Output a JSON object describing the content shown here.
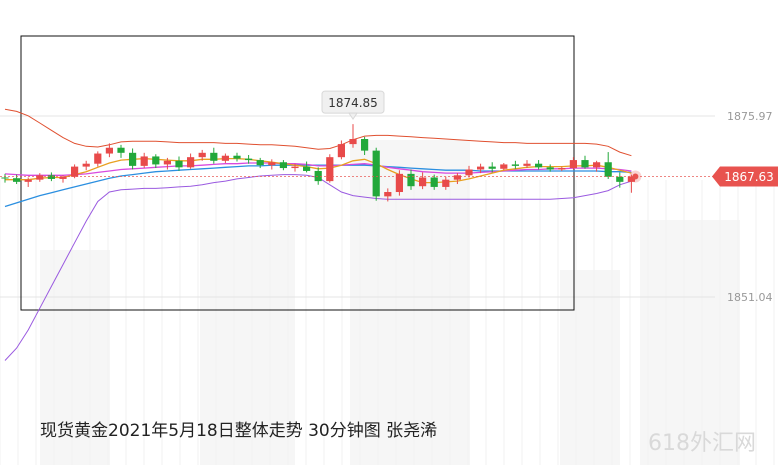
{
  "caption": "现货黄金2021年5月18日整体走势 30分钟图 张尧浠",
  "watermark": "618外汇网",
  "chart_data": {
    "type": "candlestick",
    "title": "现货黄金2021年5月18日整体走势 30分钟图",
    "ylim": [
      1840,
      1880
    ],
    "y_ticks": [
      {
        "value": 1875.97,
        "label": "1875.97"
      },
      {
        "value": 1851.04,
        "label": "1851.04"
      }
    ],
    "high_marker": {
      "value": 1874.85,
      "label": "1874.85"
    },
    "last_price": {
      "value": 1867.63,
      "label": "1867.63"
    },
    "colors": {
      "up": "#e84a4a",
      "down": "#22a83a",
      "ma_fast": "#e8a020",
      "ma_mid": "#d84adf",
      "ma_slow": "#2b8fe0",
      "bb_upper": "#e05030",
      "bb_lower": "#9a5ae0",
      "price_tag": "#e8534f"
    },
    "candles": [
      [
        1867.5,
        1868.0,
        1866.8,
        1867.4
      ],
      [
        1867.4,
        1867.9,
        1866.6,
        1866.9
      ],
      [
        1866.9,
        1867.5,
        1866.2,
        1867.2
      ],
      [
        1867.2,
        1868.1,
        1866.9,
        1867.8
      ],
      [
        1867.8,
        1868.2,
        1867.0,
        1867.3
      ],
      [
        1867.3,
        1867.8,
        1866.8,
        1867.6
      ],
      [
        1867.6,
        1869.3,
        1867.4,
        1869.0
      ],
      [
        1869.0,
        1869.8,
        1868.5,
        1869.4
      ],
      [
        1869.4,
        1871.1,
        1869.0,
        1870.8
      ],
      [
        1870.8,
        1872.2,
        1870.3,
        1871.6
      ],
      [
        1871.6,
        1872.0,
        1870.2,
        1870.9
      ],
      [
        1870.9,
        1871.5,
        1868.6,
        1869.1
      ],
      [
        1869.1,
        1870.9,
        1868.8,
        1870.4
      ],
      [
        1870.4,
        1870.7,
        1868.8,
        1869.3
      ],
      [
        1869.3,
        1870.2,
        1868.6,
        1869.8
      ],
      [
        1869.8,
        1870.4,
        1868.4,
        1868.9
      ],
      [
        1868.9,
        1870.8,
        1868.7,
        1870.3
      ],
      [
        1870.3,
        1871.3,
        1869.8,
        1870.9
      ],
      [
        1870.9,
        1871.6,
        1869.4,
        1869.8
      ],
      [
        1869.8,
        1870.8,
        1869.5,
        1870.5
      ],
      [
        1870.5,
        1870.9,
        1869.7,
        1870.1
      ],
      [
        1870.1,
        1870.6,
        1869.4,
        1869.9
      ],
      [
        1869.9,
        1870.2,
        1868.8,
        1869.2
      ],
      [
        1869.2,
        1870.0,
        1868.6,
        1869.6
      ],
      [
        1869.6,
        1869.9,
        1868.5,
        1868.8
      ],
      [
        1868.8,
        1869.4,
        1868.3,
        1869.0
      ],
      [
        1869.0,
        1869.7,
        1868.2,
        1868.4
      ],
      [
        1868.4,
        1868.9,
        1866.5,
        1867.0
      ],
      [
        1867.0,
        1870.7,
        1866.8,
        1870.3
      ],
      [
        1870.3,
        1872.6,
        1870.0,
        1872.1
      ],
      [
        1872.1,
        1874.85,
        1871.6,
        1872.8
      ],
      [
        1872.8,
        1873.1,
        1870.6,
        1871.2
      ],
      [
        1871.2,
        1871.6,
        1864.3,
        1864.9
      ],
      [
        1864.9,
        1866.0,
        1864.2,
        1865.5
      ],
      [
        1865.5,
        1868.5,
        1865.0,
        1868.0
      ],
      [
        1868.0,
        1868.6,
        1865.8,
        1866.3
      ],
      [
        1866.3,
        1868.2,
        1865.9,
        1867.5
      ],
      [
        1867.5,
        1867.9,
        1865.8,
        1866.2
      ],
      [
        1866.2,
        1867.6,
        1865.8,
        1867.2
      ],
      [
        1867.2,
        1868.1,
        1866.6,
        1867.8
      ],
      [
        1867.8,
        1869.1,
        1867.5,
        1868.6
      ],
      [
        1868.6,
        1869.4,
        1868.1,
        1869.0
      ],
      [
        1869.0,
        1869.6,
        1868.2,
        1868.7
      ],
      [
        1868.7,
        1869.5,
        1868.5,
        1869.3
      ],
      [
        1869.3,
        1869.8,
        1868.7,
        1869.1
      ],
      [
        1869.1,
        1869.9,
        1868.8,
        1869.4
      ],
      [
        1869.4,
        1869.9,
        1868.6,
        1868.9
      ],
      [
        1868.9,
        1869.3,
        1868.3,
        1868.6
      ],
      [
        1868.6,
        1869.0,
        1868.4,
        1868.8
      ],
      [
        1868.8,
        1870.3,
        1868.6,
        1869.9
      ],
      [
        1869.9,
        1870.5,
        1868.7,
        1868.9
      ],
      [
        1868.9,
        1869.8,
        1868.3,
        1869.6
      ],
      [
        1869.6,
        1871.0,
        1867.3,
        1867.6
      ],
      [
        1867.6,
        1868.2,
        1866.1,
        1866.9
      ],
      [
        1866.9,
        1867.9,
        1865.4,
        1867.63
      ]
    ],
    "ma_fast": [
      1867.2,
      1867.2,
      1867.2,
      1867.4,
      1867.5,
      1867.5,
      1867.9,
      1868.3,
      1868.9,
      1869.5,
      1869.9,
      1870.0,
      1870.1,
      1870.0,
      1869.9,
      1869.8,
      1869.8,
      1870.0,
      1870.0,
      1870.1,
      1870.1,
      1870.0,
      1869.8,
      1869.6,
      1869.4,
      1869.2,
      1869.0,
      1868.7,
      1868.8,
      1869.2,
      1869.8,
      1870.0,
      1869.4,
      1868.6,
      1867.9,
      1867.3,
      1866.8,
      1866.8,
      1866.9,
      1867.0,
      1867.3,
      1867.7,
      1868.1,
      1868.5,
      1868.7,
      1868.9,
      1869.0,
      1869.0,
      1869.0,
      1869.1,
      1869.1,
      1869.2,
      1868.9,
      1868.5,
      1868.1
    ],
    "ma_mid": [
      1868.0,
      1867.9,
      1867.8,
      1867.8,
      1867.8,
      1867.8,
      1867.9,
      1868.0,
      1868.2,
      1868.4,
      1868.6,
      1868.7,
      1868.8,
      1868.9,
      1869.0,
      1869.1,
      1869.1,
      1869.2,
      1869.3,
      1869.4,
      1869.4,
      1869.5,
      1869.5,
      1869.5,
      1869.4,
      1869.4,
      1869.3,
      1869.1,
      1869.1,
      1869.2,
      1869.3,
      1869.4,
      1869.2,
      1868.9,
      1868.7,
      1868.5,
      1868.3,
      1868.2,
      1868.1,
      1868.1,
      1868.1,
      1868.2,
      1868.3,
      1868.4,
      1868.5,
      1868.6,
      1868.6,
      1868.7,
      1868.7,
      1868.8,
      1868.8,
      1868.8,
      1868.7,
      1868.6,
      1868.4
    ],
    "ma_slow": [
      1863.5,
      1864.0,
      1864.5,
      1865.0,
      1865.4,
      1865.8,
      1866.2,
      1866.6,
      1867.0,
      1867.4,
      1867.7,
      1867.9,
      1868.1,
      1868.3,
      1868.4,
      1868.5,
      1868.6,
      1868.7,
      1868.8,
      1868.9,
      1869.0,
      1869.1,
      1869.1,
      1869.2,
      1869.2,
      1869.2,
      1869.2,
      1869.2,
      1869.2,
      1869.2,
      1869.2,
      1869.2,
      1869.1,
      1869.0,
      1868.9,
      1868.8,
      1868.7,
      1868.6,
      1868.5,
      1868.5,
      1868.5,
      1868.4,
      1868.4,
      1868.4,
      1868.4,
      1868.4,
      1868.4,
      1868.4,
      1868.4,
      1868.4,
      1868.4,
      1868.4,
      1868.3,
      1868.3,
      1868.2
    ],
    "bb_upper": [
      1876.9,
      1876.6,
      1876.0,
      1875.0,
      1874.0,
      1873.0,
      1872.2,
      1871.8,
      1871.7,
      1872.0,
      1872.4,
      1872.5,
      1872.5,
      1872.5,
      1872.4,
      1872.3,
      1872.3,
      1872.3,
      1872.3,
      1872.2,
      1872.2,
      1872.1,
      1872.0,
      1872.0,
      1871.9,
      1871.8,
      1871.6,
      1871.4,
      1871.5,
      1872.0,
      1872.7,
      1873.2,
      1873.3,
      1873.3,
      1873.2,
      1873.1,
      1873.0,
      1872.9,
      1872.8,
      1872.7,
      1872.6,
      1872.5,
      1872.4,
      1872.3,
      1872.3,
      1872.2,
      1872.2,
      1872.2,
      1872.2,
      1872.2,
      1872.2,
      1872.1,
      1871.8,
      1871.0,
      1870.5
    ],
    "bb_lower": [
      1842.3,
      1844.0,
      1846.5,
      1849.5,
      1852.5,
      1855.5,
      1858.5,
      1861.5,
      1864.2,
      1865.5,
      1865.8,
      1865.9,
      1866.0,
      1866.0,
      1866.1,
      1866.2,
      1866.3,
      1866.5,
      1866.8,
      1867.0,
      1867.3,
      1867.5,
      1867.7,
      1867.8,
      1867.9,
      1867.9,
      1867.8,
      1867.5,
      1866.5,
      1865.5,
      1865.0,
      1864.8,
      1864.6,
      1864.5,
      1864.5,
      1864.5,
      1864.5,
      1864.5,
      1864.5,
      1864.5,
      1864.5,
      1864.5,
      1864.5,
      1864.5,
      1864.5,
      1864.5,
      1864.5,
      1864.5,
      1864.6,
      1864.7,
      1865.0,
      1865.3,
      1865.7,
      1866.5,
      1867.0
    ]
  }
}
